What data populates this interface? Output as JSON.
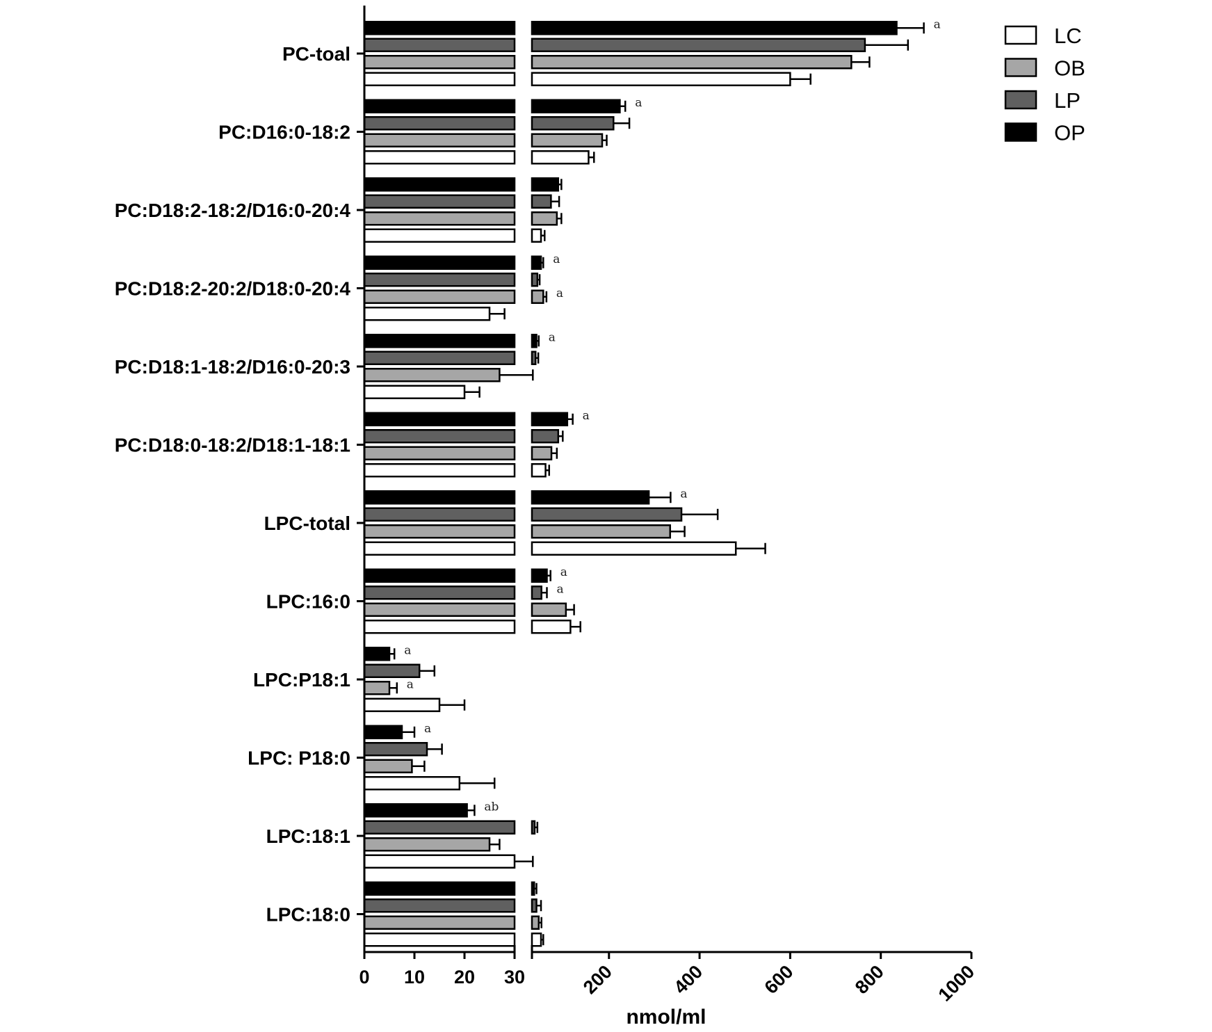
{
  "chart_data": {
    "type": "bar",
    "orientation": "horizontal",
    "broken_axis": true,
    "categories": [
      "PC-toal",
      "PC:D16:0-18:2",
      "PC:D18:2-18:2/D16:0-20:4",
      "PC:D18:2-20:2/D18:0-20:4",
      "PC:D18:1-18:2/D16:0-20:3",
      "PC:D18:0-18:2/D18:1-18:1",
      "LPC-total",
      "LPC:16:0",
      "LPC:P18:1",
      "LPC: P18:0",
      "LPC:18:1",
      "LPC:18:0"
    ],
    "series": [
      {
        "name": "LC",
        "color": "#ffffff",
        "values": [
          600,
          155,
          50,
          25,
          20,
          60,
          480,
          115,
          15,
          19,
          30,
          50
        ],
        "errors": [
          45,
          12,
          8,
          3,
          3,
          8,
          65,
          22,
          5,
          7,
          2,
          5
        ]
      },
      {
        "name": "OB",
        "color": "#a6a6a6",
        "values": [
          735,
          185,
          85,
          55,
          27,
          73,
          335,
          105,
          5,
          9.5,
          25,
          45
        ],
        "errors": [
          40,
          10,
          10,
          7,
          5,
          12,
          32,
          18,
          1.5,
          2.5,
          2,
          6
        ]
      },
      {
        "name": "LP",
        "color": "#606060",
        "values": [
          765,
          210,
          72,
          42,
          38,
          88,
          360,
          51,
          11,
          12.5,
          36,
          40
        ],
        "errors": [
          95,
          35,
          18,
          5,
          6,
          10,
          80,
          12,
          3,
          3,
          6,
          10
        ]
      },
      {
        "name": "OP",
        "color": "#000000",
        "values": [
          835,
          224,
          88,
          50,
          40,
          108,
          288,
          63,
          5,
          7.5,
          20.5,
          35
        ],
        "errors": [
          60,
          12,
          7,
          5,
          5,
          12,
          48,
          8,
          1,
          2.5,
          1.5,
          5
        ]
      }
    ],
    "significance": [
      {
        "category": "PC-toal",
        "series": "OP",
        "label": "a"
      },
      {
        "category": "PC:D16:0-18:2",
        "series": "OP",
        "label": "a"
      },
      {
        "category": "PC:D18:2-20:2/D18:0-20:4",
        "series": "OP",
        "label": "a"
      },
      {
        "category": "PC:D18:2-20:2/D18:0-20:4",
        "series": "OB",
        "label": "a"
      },
      {
        "category": "PC:D18:1-18:2/D16:0-20:3",
        "series": "OP",
        "label": "a"
      },
      {
        "category": "PC:D18:0-18:2/D18:1-18:1",
        "series": "OP",
        "label": "a"
      },
      {
        "category": "LPC-total",
        "series": "OP",
        "label": "a"
      },
      {
        "category": "LPC:16:0",
        "series": "OP",
        "label": "a"
      },
      {
        "category": "LPC:16:0",
        "series": "LP",
        "label": "a"
      },
      {
        "category": "LPC:P18:1",
        "series": "OP",
        "label": "a"
      },
      {
        "category": "LPC:P18:1",
        "series": "OB",
        "label": "a"
      },
      {
        "category": "LPC: P18:0",
        "series": "OP",
        "label": "a"
      },
      {
        "category": "LPC:18:1",
        "series": "OP",
        "label": "ab"
      }
    ],
    "x_segments": [
      {
        "range": [
          0,
          30
        ],
        "ticks": [
          "0",
          "10",
          "20",
          "30"
        ]
      },
      {
        "range": [
          30,
          1000
        ],
        "ticks": [
          "200",
          "400",
          "600",
          "800",
          "1000"
        ]
      }
    ],
    "xlabel": "nmol/ml",
    "ylabel": "",
    "title": "",
    "legend": {
      "position": "top-right",
      "order": [
        "LC",
        "OB",
        "LP",
        "OP"
      ]
    },
    "grid": false
  }
}
